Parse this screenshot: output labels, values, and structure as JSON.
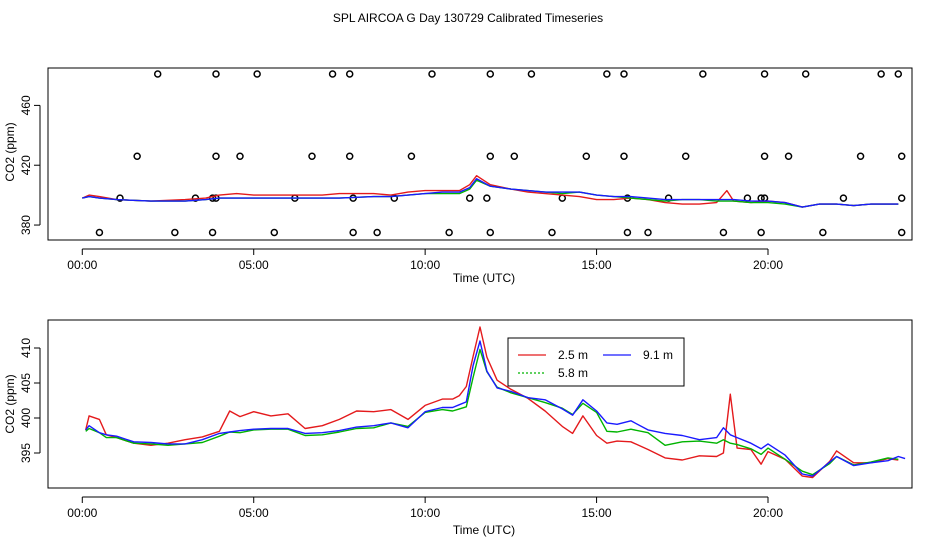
{
  "page_title": "SPL AIRCOA G  Day 130729  Calibrated Timeseries",
  "chart_data": [
    {
      "type": "scatter",
      "xlabel": "Time (UTC)",
      "ylabel": "CO2 (ppm)",
      "xlim": [
        -1.0,
        24.2
      ],
      "ylim": [
        370,
        485
      ],
      "xticks": [
        0,
        5,
        10,
        15,
        20
      ],
      "xtick_labels": [
        "00:00",
        "05:00",
        "10:00",
        "15:00",
        "20:00"
      ],
      "yticks": [
        380,
        420,
        460
      ],
      "ytick_labels": [
        "380",
        "420",
        "460"
      ],
      "calibration_points": {
        "x": [
          2.2,
          3.9,
          5.1,
          7.3,
          7.8,
          10.2,
          11.9,
          13.1,
          15.3,
          15.8,
          18.1,
          19.9,
          21.1,
          23.3,
          23.8,
          1.6,
          3.9,
          4.6,
          6.7,
          7.8,
          9.6,
          11.9,
          12.6,
          14.7,
          15.8,
          17.6,
          19.9,
          20.6,
          22.7,
          23.9,
          1.1,
          3.3,
          3.8,
          3.9,
          6.2,
          7.9,
          9.1,
          11.3,
          11.8,
          14.0,
          15.9,
          17.1,
          19.4,
          19.8,
          19.9,
          22.2,
          23.9,
          0.5,
          2.7,
          3.8,
          5.6,
          7.9,
          8.6,
          10.7,
          11.9,
          13.7,
          15.9,
          16.5,
          18.7,
          19.8,
          21.6,
          23.9
        ],
        "y": [
          481,
          481,
          481,
          481,
          481,
          481,
          481,
          481,
          481,
          481,
          481,
          481,
          481,
          481,
          481,
          426,
          426,
          426,
          426,
          426,
          426,
          426,
          426,
          426,
          426,
          426,
          426,
          426,
          426,
          426,
          398,
          398,
          398,
          398,
          398,
          398,
          398,
          398,
          398,
          398,
          398,
          398,
          398,
          398,
          398,
          398,
          398,
          375,
          375,
          375,
          375,
          375,
          375,
          375,
          375,
          375,
          375,
          375,
          375,
          375,
          375,
          375
        ]
      },
      "series": [
        {
          "name": "2.5 m",
          "color": "#e41a1c",
          "x": [
            0.0,
            0.2,
            0.5,
            1.0,
            2.0,
            3.0,
            3.6,
            4.0,
            4.5,
            5.0,
            6.0,
            7.0,
            7.5,
            8.5,
            9.0,
            9.5,
            10.0,
            10.5,
            11.0,
            11.3,
            11.5,
            11.9,
            12.5,
            13.0,
            13.5,
            14.0,
            14.5,
            15.0,
            15.5,
            16.0,
            16.5,
            17.0,
            17.5,
            18.0,
            18.5,
            18.8,
            19.0,
            19.5,
            20.0,
            20.5,
            21.0,
            21.5,
            22.0,
            22.5,
            23.0,
            23.5,
            23.8
          ],
          "y": [
            398,
            400,
            399,
            397,
            396,
            397,
            398,
            400,
            401,
            400,
            400,
            400,
            401,
            401,
            400,
            402,
            403,
            403,
            403,
            407,
            413,
            407,
            404,
            402,
            401,
            400,
            399,
            397,
            397,
            398,
            397,
            395,
            394,
            394,
            395,
            403,
            396,
            395,
            396,
            395,
            392,
            394,
            394,
            393,
            394,
            394,
            394
          ]
        },
        {
          "name": "5.8 m",
          "color": "#00b400",
          "x": [
            0.0,
            0.2,
            0.5,
            1.0,
            2.0,
            3.0,
            3.6,
            4.0,
            4.5,
            5.0,
            6.0,
            7.0,
            7.5,
            8.5,
            9.0,
            9.5,
            10.0,
            10.5,
            11.0,
            11.3,
            11.5,
            11.9,
            12.5,
            13.0,
            13.5,
            14.0,
            14.5,
            15.0,
            15.5,
            16.0,
            16.5,
            17.0,
            17.5,
            18.0,
            18.5,
            18.8,
            19.0,
            19.5,
            20.0,
            20.5,
            21.0,
            21.5,
            22.0,
            22.5,
            23.0,
            23.5,
            23.8
          ],
          "y": [
            398,
            399,
            398,
            397,
            396,
            396,
            397,
            398,
            398,
            398,
            398,
            398,
            398,
            399,
            399,
            400,
            401,
            401,
            401,
            404,
            410,
            406,
            404,
            403,
            402,
            401,
            402,
            400,
            399,
            398,
            397,
            396,
            397,
            397,
            396,
            396,
            396,
            395,
            395,
            394,
            392,
            394,
            394,
            393,
            394,
            394,
            394
          ]
        },
        {
          "name": "9.1 m",
          "color": "#1a1aff",
          "x": [
            0.0,
            0.2,
            0.5,
            1.0,
            2.0,
            3.0,
            3.6,
            4.0,
            4.5,
            5.0,
            6.0,
            7.0,
            7.5,
            8.5,
            9.0,
            9.5,
            10.0,
            10.5,
            11.0,
            11.3,
            11.5,
            11.9,
            12.5,
            13.0,
            13.5,
            14.0,
            14.5,
            15.0,
            15.5,
            16.0,
            16.5,
            17.0,
            17.5,
            18.0,
            18.5,
            18.8,
            19.0,
            19.5,
            20.0,
            20.5,
            21.0,
            21.5,
            22.0,
            22.5,
            23.0,
            23.5,
            23.8
          ],
          "y": [
            398,
            399,
            398,
            397,
            396,
            396,
            397,
            398,
            398,
            398,
            398,
            398,
            398,
            399,
            399,
            400,
            401,
            402,
            402,
            405,
            411,
            406,
            404,
            403,
            402,
            402,
            402,
            400,
            399,
            399,
            398,
            397,
            397,
            397,
            397,
            397,
            397,
            396,
            396,
            395,
            392,
            394,
            394,
            393,
            394,
            394,
            394
          ]
        }
      ]
    },
    {
      "type": "line",
      "xlabel": "Time (UTC)",
      "ylabel": "CO2 (ppm)",
      "xlim": [
        -1.0,
        24.2
      ],
      "ylim": [
        390,
        414
      ],
      "xticks": [
        0,
        5,
        10,
        15,
        20
      ],
      "xtick_labels": [
        "00:00",
        "05:00",
        "10:00",
        "15:00",
        "20:00"
      ],
      "yticks": [
        395,
        400,
        405,
        410
      ],
      "ytick_labels": [
        "395",
        "400",
        "405",
        "410"
      ],
      "legend": {
        "position": "top-center",
        "entries": [
          "2.5 m",
          "5.8 m",
          "9.1 m"
        ]
      },
      "series": [
        {
          "name": "2.5 m",
          "color": "#e41a1c",
          "x": [
            0.1,
            0.2,
            0.5,
            0.7,
            1.0,
            1.5,
            2.0,
            2.5,
            3.0,
            3.5,
            4.0,
            4.3,
            4.6,
            5.0,
            5.5,
            6.0,
            6.5,
            7.0,
            7.5,
            8.0,
            8.5,
            9.0,
            9.5,
            10.0,
            10.5,
            10.8,
            11.0,
            11.2,
            11.4,
            11.6,
            11.8,
            12.1,
            12.5,
            13.0,
            13.5,
            14.0,
            14.3,
            14.6,
            15.0,
            15.3,
            15.6,
            16.0,
            16.5,
            17.0,
            17.5,
            18.0,
            18.5,
            18.7,
            18.9,
            19.1,
            19.5,
            19.8,
            20.0,
            20.5,
            21.0,
            21.3,
            21.8,
            22.0,
            22.5,
            23.0,
            23.5,
            23.8
          ],
          "y": [
            398.3,
            400.3,
            399.8,
            397.6,
            397.2,
            396.4,
            396.1,
            396.4,
            396.9,
            397.3,
            398.1,
            401.0,
            400.2,
            400.9,
            400.3,
            400.6,
            398.5,
            398.9,
            399.8,
            401.0,
            400.9,
            401.2,
            399.8,
            401.8,
            402.7,
            402.7,
            403.2,
            404.5,
            408.8,
            413.0,
            408.7,
            405.4,
            404.1,
            402.8,
            401.0,
            398.8,
            397.8,
            400.3,
            397.5,
            396.4,
            396.7,
            396.6,
            395.5,
            394.3,
            394.0,
            394.6,
            394.5,
            395.0,
            403.4,
            395.7,
            395.5,
            393.4,
            395.2,
            394.1,
            391.7,
            391.5,
            393.8,
            395.3,
            393.6,
            393.6,
            394.2,
            394.0
          ]
        },
        {
          "name": "5.8 m",
          "color": "#00b400",
          "x": [
            0.1,
            0.2,
            0.5,
            0.7,
            1.0,
            1.5,
            2.0,
            2.5,
            3.0,
            3.5,
            4.0,
            4.3,
            4.6,
            5.0,
            5.5,
            6.0,
            6.5,
            7.0,
            7.5,
            8.0,
            8.5,
            9.0,
            9.5,
            10.0,
            10.5,
            10.8,
            11.0,
            11.2,
            11.4,
            11.6,
            11.8,
            12.1,
            12.5,
            13.0,
            13.5,
            14.0,
            14.3,
            14.6,
            15.0,
            15.3,
            15.6,
            16.0,
            16.5,
            17.0,
            17.5,
            18.0,
            18.5,
            18.7,
            18.9,
            19.1,
            19.5,
            19.8,
            20.0,
            20.5,
            21.0,
            21.3,
            21.8,
            22.0,
            22.5,
            23.0,
            23.5,
            23.8
          ],
          "y": [
            398.1,
            398.5,
            397.9,
            397.2,
            397.2,
            396.4,
            396.3,
            396.1,
            396.3,
            396.5,
            397.4,
            398.0,
            397.9,
            398.3,
            398.4,
            398.4,
            397.5,
            397.6,
            398.0,
            398.5,
            398.6,
            399.3,
            398.8,
            400.8,
            401.2,
            401.0,
            401.3,
            401.6,
            405.8,
            409.8,
            406.6,
            404.4,
            403.6,
            402.9,
            402.2,
            401.4,
            400.5,
            402.1,
            400.8,
            398.1,
            398.0,
            398.4,
            397.9,
            396.1,
            396.6,
            396.7,
            396.4,
            396.9,
            396.4,
            396.2,
            395.6,
            394.8,
            395.7,
            394.1,
            392.4,
            391.9,
            393.5,
            394.5,
            393.3,
            393.7,
            394.3,
            394.1
          ]
        },
        {
          "name": "9.1 m",
          "color": "#1a1aff",
          "x": [
            0.1,
            0.2,
            0.5,
            0.7,
            1.0,
            1.5,
            2.0,
            2.5,
            3.0,
            3.5,
            4.0,
            4.3,
            4.6,
            5.0,
            5.5,
            6.0,
            6.5,
            7.0,
            7.5,
            8.0,
            8.5,
            9.0,
            9.5,
            10.0,
            10.5,
            10.8,
            11.0,
            11.2,
            11.4,
            11.6,
            11.8,
            12.1,
            12.5,
            13.0,
            13.5,
            14.0,
            14.3,
            14.6,
            15.0,
            15.3,
            15.6,
            16.0,
            16.5,
            17.0,
            17.5,
            18.0,
            18.5,
            18.7,
            18.9,
            19.1,
            19.5,
            19.8,
            20.0,
            20.5,
            21.0,
            21.3,
            21.8,
            22.0,
            22.5,
            23.0,
            23.5,
            23.8,
            24.0
          ],
          "y": [
            398.3,
            398.9,
            397.9,
            397.6,
            397.4,
            396.6,
            396.5,
            396.3,
            396.3,
            396.9,
            397.8,
            398.0,
            398.2,
            398.4,
            398.5,
            398.5,
            397.8,
            397.9,
            398.2,
            398.7,
            398.9,
            399.3,
            398.6,
            400.9,
            401.5,
            401.5,
            401.9,
            402.3,
            407.5,
            411.0,
            406.7,
            404.3,
            403.8,
            402.9,
            402.6,
            401.3,
            400.4,
            402.6,
            401.0,
            399.3,
            399.1,
            399.6,
            398.3,
            397.8,
            397.5,
            396.9,
            397.2,
            398.6,
            397.6,
            397.2,
            396.4,
            395.6,
            396.3,
            394.7,
            392.0,
            391.7,
            393.7,
            394.5,
            393.2,
            393.6,
            393.9,
            394.5,
            394.2
          ]
        }
      ]
    }
  ]
}
